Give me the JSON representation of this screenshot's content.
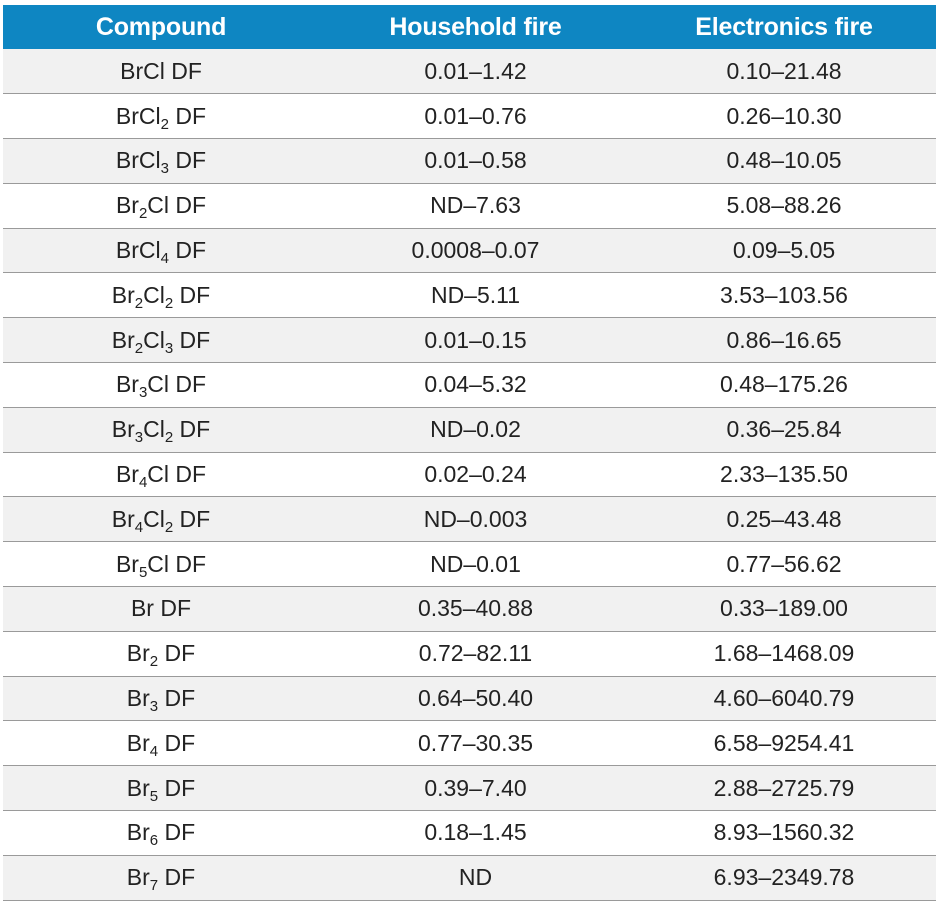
{
  "header": {
    "compound": "Compound",
    "household": "Household fire",
    "electronics": "Electronics fire"
  },
  "rows": [
    {
      "parts": [
        {
          "t": "BrCl DF"
        }
      ],
      "household": "0.01–1.42",
      "electronics": "0.10–21.48"
    },
    {
      "parts": [
        {
          "t": "BrCl"
        },
        {
          "s": "2"
        },
        {
          "t": " DF"
        }
      ],
      "household": "0.01–0.76",
      "electronics": "0.26–10.30"
    },
    {
      "parts": [
        {
          "t": "BrCl"
        },
        {
          "s": "3"
        },
        {
          "t": " DF"
        }
      ],
      "household": "0.01–0.58",
      "electronics": "0.48–10.05"
    },
    {
      "parts": [
        {
          "t": "Br"
        },
        {
          "s": "2"
        },
        {
          "t": "Cl DF"
        }
      ],
      "household": "ND–7.63",
      "electronics": "5.08–88.26"
    },
    {
      "parts": [
        {
          "t": "BrCl"
        },
        {
          "s": "4"
        },
        {
          "t": " DF"
        }
      ],
      "household": "0.0008–0.07",
      "electronics": "0.09–5.05"
    },
    {
      "parts": [
        {
          "t": "Br"
        },
        {
          "s": "2"
        },
        {
          "t": "Cl"
        },
        {
          "s": "2"
        },
        {
          "t": " DF"
        }
      ],
      "household": "ND–5.11",
      "electronics": "3.53–103.56"
    },
    {
      "parts": [
        {
          "t": "Br"
        },
        {
          "s": "2"
        },
        {
          "t": "Cl"
        },
        {
          "s": "3"
        },
        {
          "t": " DF"
        }
      ],
      "household": "0.01–0.15",
      "electronics": "0.86–16.65"
    },
    {
      "parts": [
        {
          "t": "Br"
        },
        {
          "s": "3"
        },
        {
          "t": "Cl DF"
        }
      ],
      "household": "0.04–5.32",
      "electronics": "0.48–175.26"
    },
    {
      "parts": [
        {
          "t": "Br"
        },
        {
          "s": "3"
        },
        {
          "t": "Cl"
        },
        {
          "s": "2"
        },
        {
          "t": " DF"
        }
      ],
      "household": "ND–0.02",
      "electronics": "0.36–25.84"
    },
    {
      "parts": [
        {
          "t": "Br"
        },
        {
          "s": "4"
        },
        {
          "t": "Cl DF"
        }
      ],
      "household": "0.02–0.24",
      "electronics": "2.33–135.50"
    },
    {
      "parts": [
        {
          "t": "Br"
        },
        {
          "s": "4"
        },
        {
          "t": "Cl"
        },
        {
          "s": "2"
        },
        {
          "t": " DF"
        }
      ],
      "household": "ND–0.003",
      "electronics": "0.25–43.48"
    },
    {
      "parts": [
        {
          "t": "Br"
        },
        {
          "s": "5"
        },
        {
          "t": "Cl DF"
        }
      ],
      "household": "ND–0.01",
      "electronics": "0.77–56.62"
    },
    {
      "parts": [
        {
          "t": "Br DF"
        }
      ],
      "household": "0.35–40.88",
      "electronics": "0.33–189.00"
    },
    {
      "parts": [
        {
          "t": "Br"
        },
        {
          "s": "2"
        },
        {
          "t": " DF"
        }
      ],
      "household": "0.72–82.11",
      "electronics": "1.68–1468.09"
    },
    {
      "parts": [
        {
          "t": "Br"
        },
        {
          "s": "3"
        },
        {
          "t": " DF"
        }
      ],
      "household": "0.64–50.40",
      "electronics": "4.60–6040.79"
    },
    {
      "parts": [
        {
          "t": "Br"
        },
        {
          "s": "4"
        },
        {
          "t": " DF"
        }
      ],
      "household": "0.77–30.35",
      "electronics": "6.58–9254.41"
    },
    {
      "parts": [
        {
          "t": "Br"
        },
        {
          "s": "5"
        },
        {
          "t": " DF"
        }
      ],
      "household": "0.39–7.40",
      "electronics": "2.88–2725.79"
    },
    {
      "parts": [
        {
          "t": "Br"
        },
        {
          "s": "6"
        },
        {
          "t": " DF"
        }
      ],
      "household": "0.18–1.45",
      "electronics": "8.93–1560.32"
    },
    {
      "parts": [
        {
          "t": "Br"
        },
        {
          "s": "7"
        },
        {
          "t": " DF"
        }
      ],
      "household": "ND",
      "electronics": "6.93–2349.78"
    }
  ]
}
